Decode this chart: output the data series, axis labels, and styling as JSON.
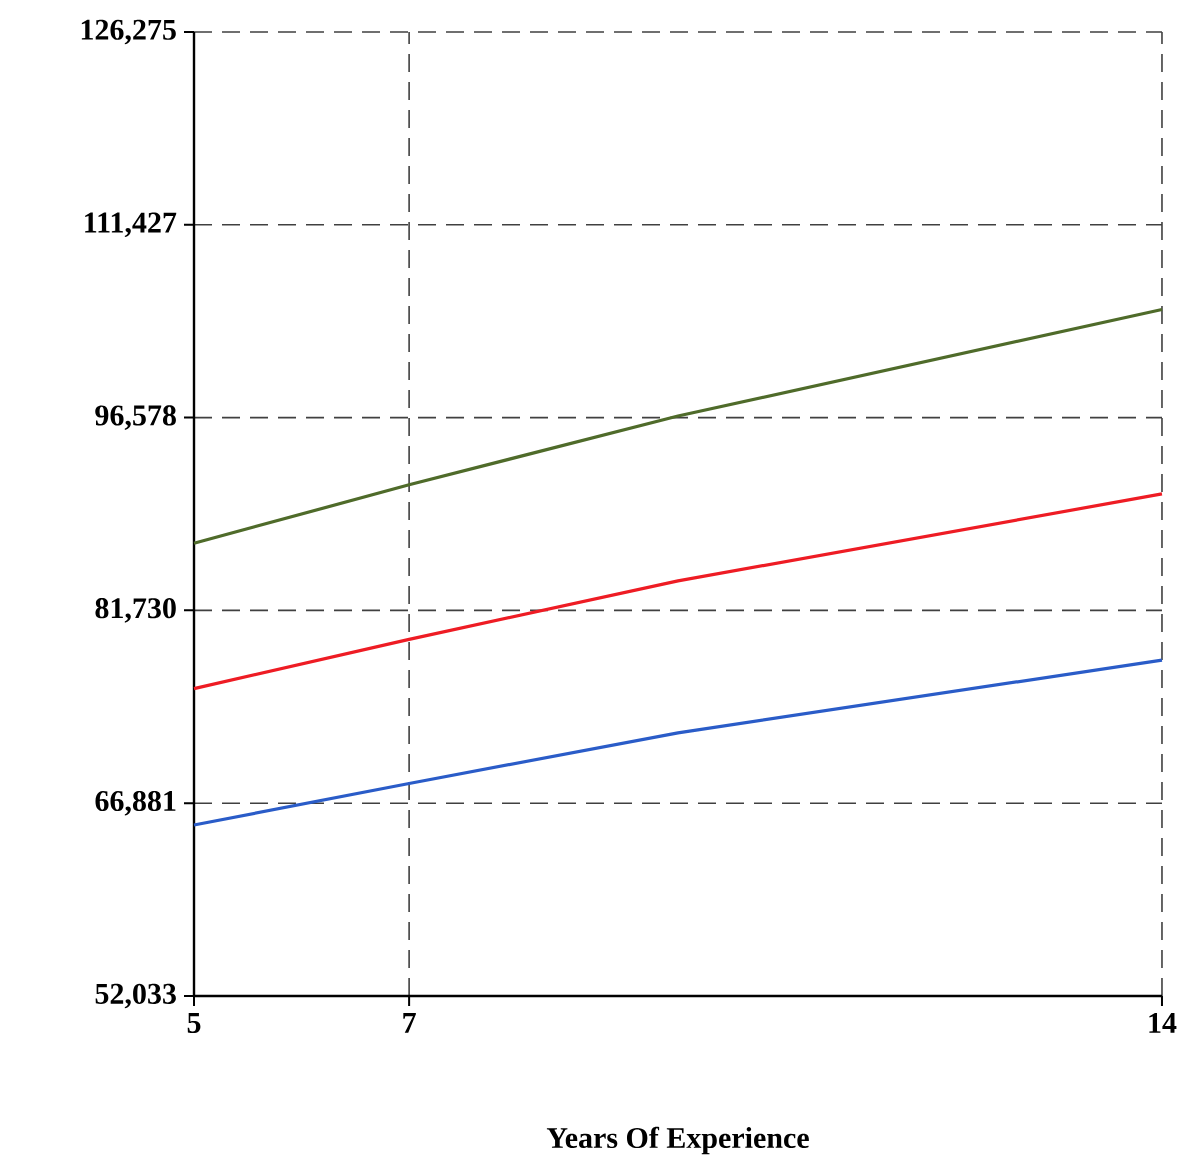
{
  "chart_data": {
    "type": "line",
    "xlabel": "Years Of Experience",
    "xlim": [
      5,
      14
    ],
    "xticks": [
      5,
      7,
      14
    ],
    "ylim": [
      52033,
      126275
    ],
    "yticks": [
      {
        "value": 52033,
        "label": "52,033"
      },
      {
        "value": 66881,
        "label": "66,881"
      },
      {
        "value": 81730,
        "label": "81,730"
      },
      {
        "value": 96578,
        "label": "96,578"
      },
      {
        "value": 111427,
        "label": "111,427"
      },
      {
        "value": 126275,
        "label": "126,275"
      }
    ],
    "grid": true,
    "marker": "none",
    "line_style": "solid",
    "series": [
      {
        "color": "#4f6b2a",
        "x": [
          5,
          7,
          9.5,
          14
        ],
        "values": [
          86900,
          91400,
          96700,
          104900
        ]
      },
      {
        "color": "#ee1c24",
        "x": [
          5,
          7,
          9.5,
          14
        ],
        "values": [
          75700,
          79500,
          84000,
          90700
        ]
      },
      {
        "color": "#2a5cc8",
        "x": [
          5,
          7,
          9.5,
          14
        ],
        "values": [
          65200,
          68400,
          72300,
          77900
        ]
      }
    ]
  }
}
